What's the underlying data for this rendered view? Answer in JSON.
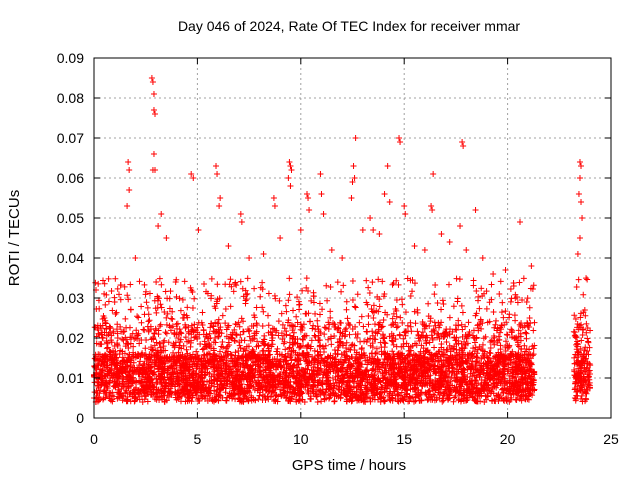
{
  "chart_data": {
    "type": "scatter",
    "title": "Day 046 of 2024, Rate Of TEC Index for receiver mmar",
    "xlabel": "GPS time / hours",
    "ylabel": "ROTI / TECUs",
    "xlim": [
      0,
      25
    ],
    "ylim": [
      0,
      0.09
    ],
    "xticks": [
      0,
      5,
      10,
      15,
      20,
      25
    ],
    "yticks": [
      0,
      0.01,
      0.02,
      0.03,
      0.04,
      0.05,
      0.06,
      0.07,
      0.08,
      0.09
    ],
    "xtick_labels": [
      "0",
      "5",
      "10",
      "15",
      "20",
      "25"
    ],
    "ytick_labels": [
      "0",
      "0.01",
      "0.02",
      "0.03",
      "0.04",
      "0.05",
      "0.06",
      "0.07",
      "0.08",
      "0.09"
    ],
    "grid": true,
    "marker": "plus",
    "color": "#ff0000",
    "data_span_hours": [
      [
        0,
        21.3
      ],
      [
        23.2,
        24.0
      ]
    ],
    "series": [
      {
        "name": "",
        "points": [
          [
            2.8,
            0.085
          ],
          [
            2.85,
            0.084
          ],
          [
            2.9,
            0.081
          ],
          [
            2.9,
            0.077
          ],
          [
            2.95,
            0.076
          ],
          [
            2.9,
            0.066
          ],
          [
            2.85,
            0.062
          ],
          [
            2.95,
            0.062
          ],
          [
            1.65,
            0.064
          ],
          [
            1.7,
            0.062
          ],
          [
            1.7,
            0.057
          ],
          [
            1.6,
            0.053
          ],
          [
            3.25,
            0.051
          ],
          [
            3.1,
            0.048
          ],
          [
            4.7,
            0.061
          ],
          [
            4.8,
            0.06
          ],
          [
            5.05,
            0.047
          ],
          [
            5.9,
            0.063
          ],
          [
            5.95,
            0.061
          ],
          [
            6.1,
            0.055
          ],
          [
            6.05,
            0.053
          ],
          [
            7.1,
            0.051
          ],
          [
            7.15,
            0.049
          ],
          [
            8.7,
            0.055
          ],
          [
            8.75,
            0.053
          ],
          [
            9.45,
            0.064
          ],
          [
            9.5,
            0.063
          ],
          [
            9.55,
            0.062
          ],
          [
            9.4,
            0.06
          ],
          [
            9.5,
            0.058
          ],
          [
            10.3,
            0.056
          ],
          [
            10.35,
            0.055
          ],
          [
            10.4,
            0.052
          ],
          [
            10.95,
            0.061
          ],
          [
            11.0,
            0.056
          ],
          [
            11.1,
            0.051
          ],
          [
            12.65,
            0.07
          ],
          [
            12.55,
            0.063
          ],
          [
            12.6,
            0.06
          ],
          [
            12.5,
            0.059
          ],
          [
            12.45,
            0.055
          ],
          [
            13.35,
            0.05
          ],
          [
            13.5,
            0.047
          ],
          [
            14.2,
            0.063
          ],
          [
            14.05,
            0.056
          ],
          [
            14.3,
            0.054
          ],
          [
            14.75,
            0.07
          ],
          [
            14.8,
            0.069
          ],
          [
            15.0,
            0.053
          ],
          [
            15.05,
            0.051
          ],
          [
            16.4,
            0.061
          ],
          [
            16.3,
            0.053
          ],
          [
            16.35,
            0.052
          ],
          [
            17.8,
            0.069
          ],
          [
            17.85,
            0.068
          ],
          [
            17.7,
            0.048
          ],
          [
            18.45,
            0.052
          ],
          [
            19.9,
            0.037
          ],
          [
            20.6,
            0.049
          ],
          [
            21.15,
            0.038
          ],
          [
            23.5,
            0.064
          ],
          [
            23.55,
            0.063
          ],
          [
            23.5,
            0.06
          ],
          [
            23.45,
            0.056
          ],
          [
            23.55,
            0.054
          ],
          [
            23.6,
            0.05
          ],
          [
            23.5,
            0.045
          ],
          [
            23.4,
            0.041
          ],
          [
            3.95,
            0.034
          ],
          [
            0.5,
            0.025
          ],
          [
            1.0,
            0.029
          ],
          [
            2.0,
            0.04
          ],
          [
            3.5,
            0.045
          ],
          [
            6.5,
            0.043
          ],
          [
            7.5,
            0.04
          ],
          [
            8.2,
            0.041
          ],
          [
            9.0,
            0.045
          ],
          [
            10.0,
            0.047
          ],
          [
            11.5,
            0.042
          ],
          [
            12.0,
            0.04
          ],
          [
            13.0,
            0.047
          ],
          [
            13.8,
            0.046
          ],
          [
            15.5,
            0.043
          ],
          [
            16.0,
            0.042
          ],
          [
            16.8,
            0.046
          ],
          [
            17.2,
            0.044
          ],
          [
            18.0,
            0.042
          ],
          [
            18.8,
            0.04
          ],
          [
            19.3,
            0.036
          ],
          [
            20.3,
            0.033
          ]
        ]
      }
    ],
    "envelope_note_hidden": ""
  }
}
